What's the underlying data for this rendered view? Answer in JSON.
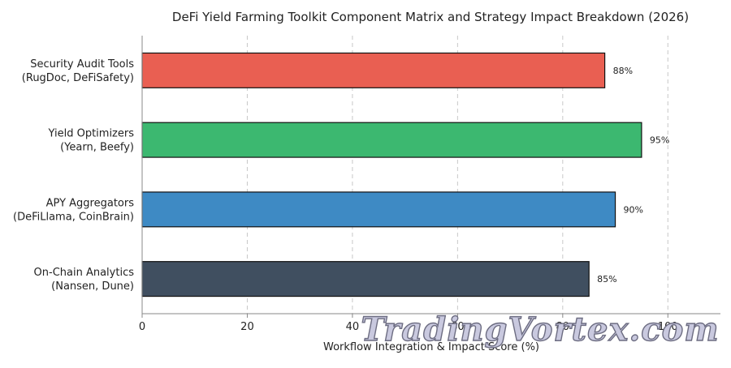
{
  "chart_data": {
    "type": "bar",
    "orientation": "horizontal",
    "title": "DeFi Yield Farming Toolkit Component Matrix and Strategy Impact Breakdown (2026)",
    "xlabel": "Workflow Integration & Impact Score (%)",
    "ylabel": "",
    "xlim": [
      0,
      110
    ],
    "xticks": [
      0,
      20,
      40,
      60,
      80,
      100
    ],
    "grid": "vertical dashed",
    "categories": [
      [
        "Security Audit Tools",
        "(RugDoc, DeFiSafety)"
      ],
      [
        "Yield Optimizers",
        "(Yearn, Beefy)"
      ],
      [
        "APY Aggregators",
        "(DeFiLlama, CoinBrain)"
      ],
      [
        "On-Chain Analytics",
        "(Nansen, Dune)"
      ]
    ],
    "values": [
      88,
      95,
      90,
      85
    ],
    "data_labels": [
      "88%",
      "95%",
      "90%",
      "85%"
    ],
    "colors": [
      "#e95f52",
      "#3cb870",
      "#3e8ac4",
      "#404f60"
    ]
  },
  "watermark": "TradingVortex.com"
}
